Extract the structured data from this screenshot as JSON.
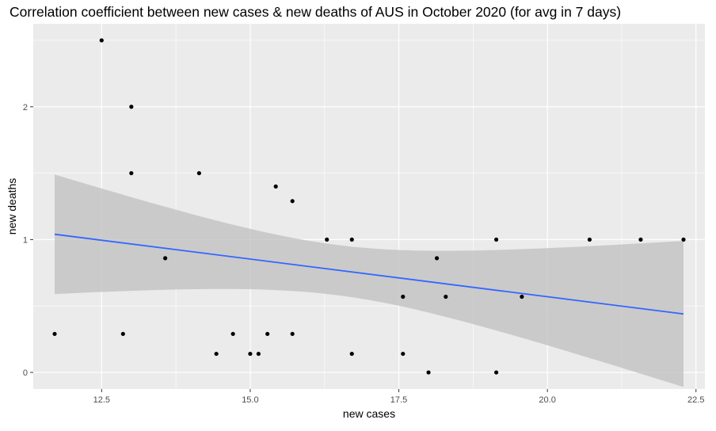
{
  "chart_data": {
    "type": "scatter",
    "title": "Correlation coefficient between new cases & new deaths of AUS in October 2020 (for avg in 7 days)",
    "xlabel": "new cases",
    "ylabel": "new deaths",
    "xlim": [
      11.35,
      22.65
    ],
    "ylim": [
      -0.125,
      2.625
    ],
    "x_ticks": [
      12.5,
      15.0,
      17.5,
      20.0,
      22.5
    ],
    "x_tick_labels": [
      "12.5",
      "15.0",
      "17.5",
      "20.0",
      "22.5"
    ],
    "y_ticks": [
      0,
      1,
      2
    ],
    "y_tick_labels": [
      "0",
      "1",
      "2"
    ],
    "grid": true,
    "points": [
      {
        "x": 11.71,
        "y": 0.29
      },
      {
        "x": 12.5,
        "y": 2.5
      },
      {
        "x": 12.86,
        "y": 0.29
      },
      {
        "x": 13.0,
        "y": 2.0
      },
      {
        "x": 13.0,
        "y": 1.5
      },
      {
        "x": 13.57,
        "y": 0.86
      },
      {
        "x": 14.14,
        "y": 1.5
      },
      {
        "x": 14.43,
        "y": 0.14
      },
      {
        "x": 14.71,
        "y": 0.29
      },
      {
        "x": 15.0,
        "y": 0.14
      },
      {
        "x": 15.14,
        "y": 0.14
      },
      {
        "x": 15.29,
        "y": 0.29
      },
      {
        "x": 15.43,
        "y": 1.4
      },
      {
        "x": 15.71,
        "y": 1.29
      },
      {
        "x": 15.71,
        "y": 0.29
      },
      {
        "x": 16.29,
        "y": 1.0
      },
      {
        "x": 16.71,
        "y": 1.0
      },
      {
        "x": 16.71,
        "y": 0.14
      },
      {
        "x": 17.57,
        "y": 0.57
      },
      {
        "x": 17.57,
        "y": 0.14
      },
      {
        "x": 18.0,
        "y": 0.0
      },
      {
        "x": 18.14,
        "y": 0.86
      },
      {
        "x": 18.29,
        "y": 0.57
      },
      {
        "x": 19.14,
        "y": 1.0
      },
      {
        "x": 19.14,
        "y": 0.0
      },
      {
        "x": 19.57,
        "y": 0.57
      },
      {
        "x": 20.71,
        "y": 1.0
      },
      {
        "x": 21.57,
        "y": 1.0
      },
      {
        "x": 22.29,
        "y": 1.0
      }
    ],
    "trend": {
      "method": "linear",
      "x": [
        11.71,
        22.29
      ],
      "y": [
        1.04,
        0.44
      ],
      "ci_lower": [
        0.6,
        -0.1
      ],
      "ci_upper": [
        1.5,
        1.0
      ]
    },
    "colors": {
      "panel_bg": "#ebebeb",
      "grid": "#ffffff",
      "line": "#3366ff",
      "band": "#bdbdbd",
      "point": "#000000"
    }
  }
}
